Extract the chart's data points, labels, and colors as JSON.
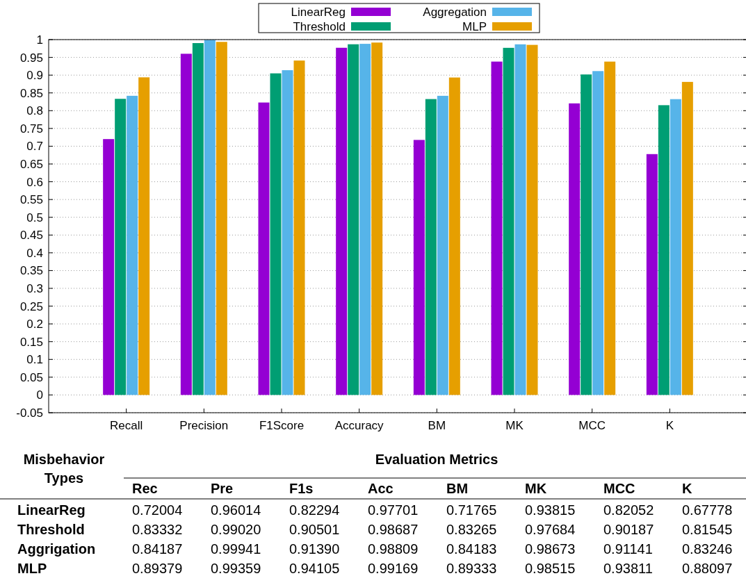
{
  "chart_data": {
    "type": "bar",
    "categories": [
      "Recall",
      "Precision",
      "F1Score",
      "Accuracy",
      "BM",
      "MK",
      "MCC",
      "K"
    ],
    "series": [
      {
        "name": "LinearReg",
        "color": "#9400d3",
        "values": [
          0.72004,
          0.96014,
          0.82294,
          0.97701,
          0.71765,
          0.93815,
          0.82052,
          0.67778
        ],
        "value_labels": [
          "0.72004",
          "0.96014",
          "0.82294",
          "0.97701",
          "0.71765",
          "0.93815",
          "0.82052",
          "0.67778"
        ]
      },
      {
        "name": "Threshold",
        "color": "#009e73",
        "values": [
          0.83332,
          0.9902,
          0.90501,
          0.98687,
          0.83265,
          0.97684,
          0.90187,
          0.81545
        ],
        "value_labels": [
          "0.83332",
          "0.99020",
          "0.90501",
          "0.98687",
          "0.83265",
          "0.97684",
          "0.90187",
          "0.81545"
        ]
      },
      {
        "name": "Aggregation",
        "color": "#56b4e9",
        "values": [
          0.84187,
          0.99941,
          0.9139,
          0.98809,
          0.84183,
          0.98673,
          0.91141,
          0.83246
        ],
        "value_labels": [
          "0.84187",
          "0.99941",
          "0.91390",
          "0.98809",
          "0.84183",
          "0.98673",
          "0.91141",
          "0.83246"
        ]
      },
      {
        "name": "MLP",
        "color": "#e69f00",
        "values": [
          0.89379,
          0.99359,
          0.94105,
          0.99169,
          0.89333,
          0.98515,
          0.93811,
          0.88097
        ],
        "value_labels": [
          "0.89379",
          "0.99359",
          "0.94105",
          "0.99169",
          "0.89333",
          "0.98515",
          "0.93811",
          "0.88097"
        ]
      }
    ],
    "ylim": [
      -0.05,
      1
    ],
    "yticks": [
      -0.05,
      0,
      0.05,
      0.1,
      0.15,
      0.2,
      0.25,
      0.3,
      0.35,
      0.4,
      0.45,
      0.5,
      0.55,
      0.6,
      0.65,
      0.7,
      0.75,
      0.8,
      0.85,
      0.9,
      0.95,
      1
    ],
    "grid": "y",
    "legend": "top",
    "annotations": [
      "Misbehavior Types",
      "Evaluation Metrics",
      "Rec",
      "Pre",
      "F1s",
      "Acc",
      "BM",
      "MK",
      "MCC",
      "K",
      "LinearReg",
      "Threshold",
      "Aggrigation",
      "MLP"
    ]
  }
}
